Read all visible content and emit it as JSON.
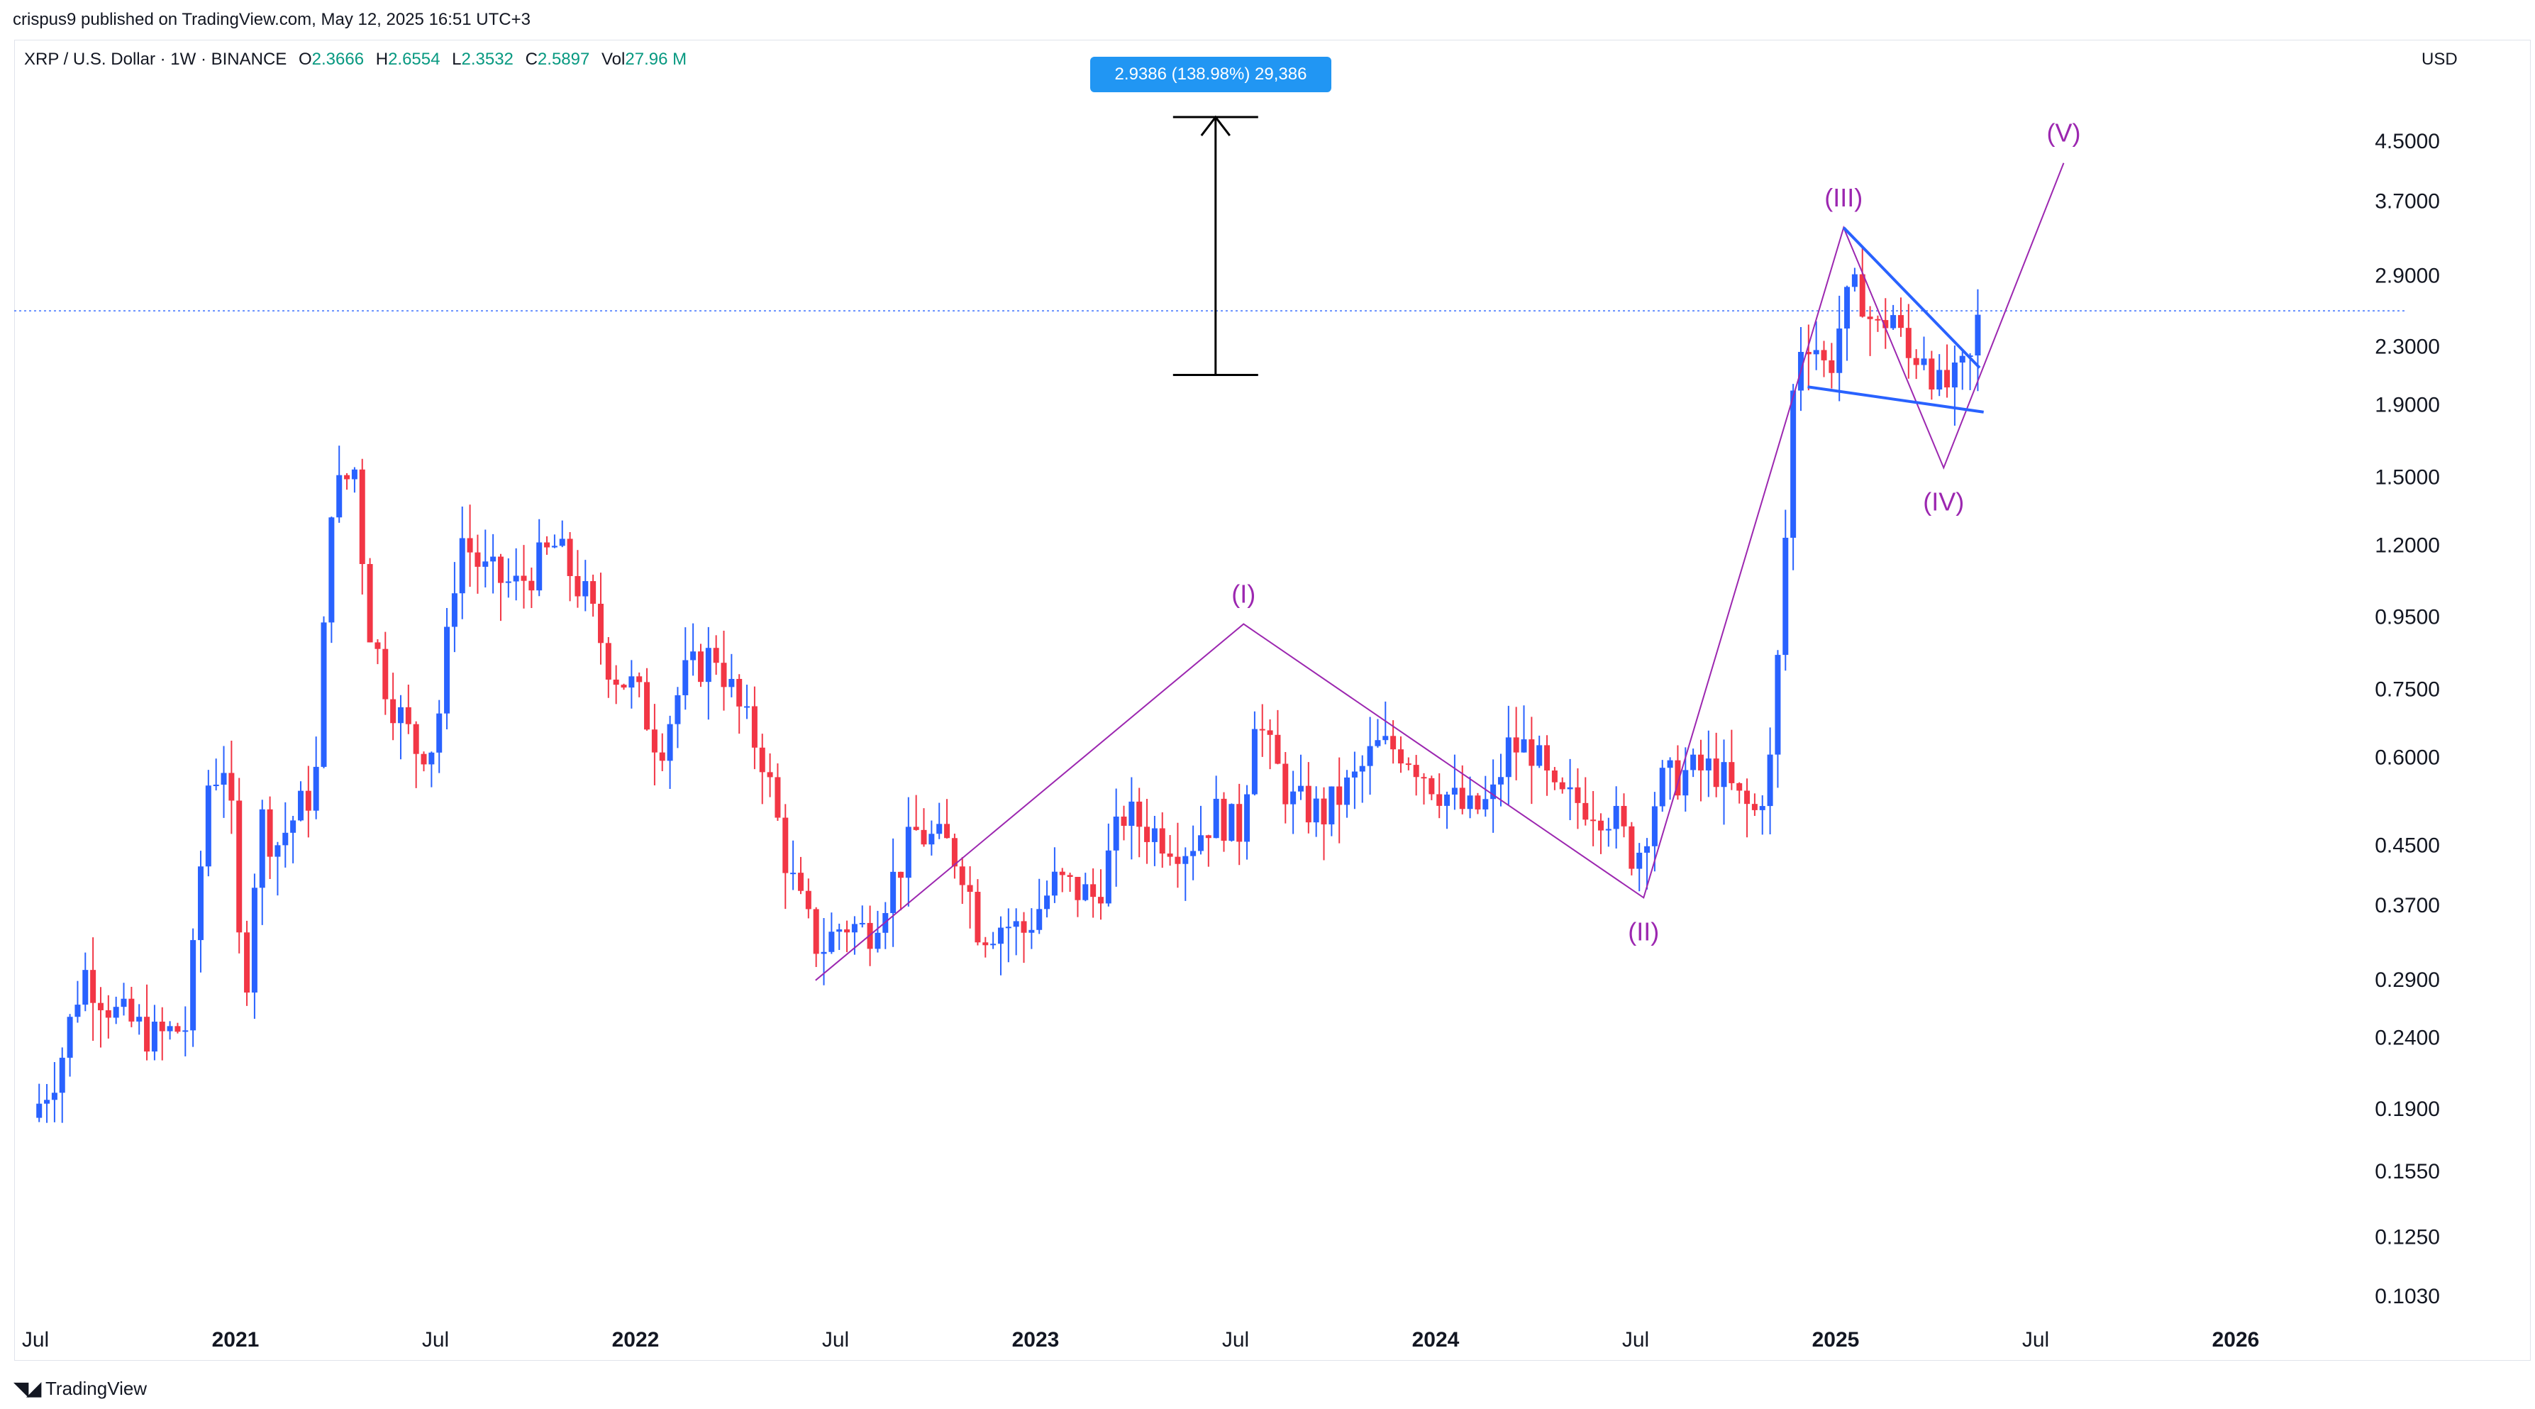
{
  "header": {
    "published_line": "crispus9 published on TradingView.com, May 12, 2025 16:51 UTC+3"
  },
  "legend": {
    "symbol": "XRP / U.S. Dollar · 1W · BINANCE",
    "open_label": "O",
    "open": "2.3666",
    "high_label": "H",
    "high": "2.6554",
    "low_label": "L",
    "low": "2.3532",
    "close_label": "C",
    "close": "2.5897",
    "vol_label": "Vol",
    "vol": "27.96 M"
  },
  "measure_label": "2.9386 (138.98%) 29,386",
  "currency": "USD",
  "footer": {
    "logo_text": "TradingView"
  },
  "colors": {
    "up": "#2962ff",
    "down": "#f23645",
    "wave": "#9c27b0",
    "triangle": "#2962ff",
    "price_line": "#2962ff",
    "measure_box": "#2196f3"
  },
  "chart_data": {
    "type": "candlestick",
    "y_scale": "log",
    "current_price": 2.5897,
    "y_ticks": [
      "4.5000",
      "3.7000",
      "2.9000",
      "2.3000",
      "1.9000",
      "1.5000",
      "1.2000",
      "0.9500",
      "0.7500",
      "0.6000",
      "0.4500",
      "0.3700",
      "0.2900",
      "0.2400",
      "0.1900",
      "0.1550",
      "0.1250",
      "0.1030"
    ],
    "x_ticks": [
      {
        "label": "Jul",
        "t": 2020.5,
        "bold": false
      },
      {
        "label": "2021",
        "t": 2021.0,
        "bold": true
      },
      {
        "label": "Jul",
        "t": 2021.5,
        "bold": false
      },
      {
        "label": "2022",
        "t": 2022.0,
        "bold": true
      },
      {
        "label": "Jul",
        "t": 2022.5,
        "bold": false
      },
      {
        "label": "2023",
        "t": 2023.0,
        "bold": true
      },
      {
        "label": "Jul",
        "t": 2023.5,
        "bold": false
      },
      {
        "label": "2024",
        "t": 2024.0,
        "bold": true
      },
      {
        "label": "Jul",
        "t": 2024.5,
        "bold": false
      },
      {
        "label": "2025",
        "t": 2025.0,
        "bold": true
      },
      {
        "label": "Jul",
        "t": 2025.5,
        "bold": false
      },
      {
        "label": "2026",
        "t": 2026.0,
        "bold": true
      }
    ],
    "price_anchors": [
      [
        2020.49,
        0.185
      ],
      [
        2020.56,
        0.22
      ],
      [
        2020.62,
        0.3
      ],
      [
        2020.7,
        0.26
      ],
      [
        2020.8,
        0.24
      ],
      [
        2020.88,
        0.25
      ],
      [
        2020.93,
        0.55
      ],
      [
        2020.98,
        0.6
      ],
      [
        2021.0,
        0.4
      ],
      [
        2021.02,
        0.26
      ],
      [
        2021.06,
        0.5
      ],
      [
        2021.1,
        0.45
      ],
      [
        2021.2,
        0.55
      ],
      [
        2021.24,
        1.4
      ],
      [
        2021.3,
        1.55
      ],
      [
        2021.33,
        0.95
      ],
      [
        2021.38,
        0.75
      ],
      [
        2021.45,
        0.62
      ],
      [
        2021.5,
        0.63
      ],
      [
        2021.56,
        1.25
      ],
      [
        2021.62,
        1.1
      ],
      [
        2021.7,
        1.05
      ],
      [
        2021.8,
        1.2
      ],
      [
        2021.88,
        1.0
      ],
      [
        2021.94,
        0.8
      ],
      [
        2022.0,
        0.75
      ],
      [
        2022.06,
        0.62
      ],
      [
        2022.12,
        0.78
      ],
      [
        2022.2,
        0.85
      ],
      [
        2022.26,
        0.7
      ],
      [
        2022.32,
        0.6
      ],
      [
        2022.38,
        0.42
      ],
      [
        2022.42,
        0.36
      ],
      [
        2022.46,
        0.32
      ],
      [
        2022.52,
        0.35
      ],
      [
        2022.58,
        0.34
      ],
      [
        2022.7,
        0.47
      ],
      [
        2022.78,
        0.45
      ],
      [
        2022.82,
        0.42
      ],
      [
        2022.86,
        0.34
      ],
      [
        2022.92,
        0.35
      ],
      [
        2022.97,
        0.34
      ],
      [
        2023.05,
        0.4
      ],
      [
        2023.15,
        0.38
      ],
      [
        2023.22,
        0.5
      ],
      [
        2023.3,
        0.47
      ],
      [
        2023.38,
        0.45
      ],
      [
        2023.45,
        0.5
      ],
      [
        2023.52,
        0.47
      ],
      [
        2023.54,
        0.72
      ],
      [
        2023.58,
        0.62
      ],
      [
        2023.64,
        0.52
      ],
      [
        2023.72,
        0.5
      ],
      [
        2023.8,
        0.56
      ],
      [
        2023.85,
        0.62
      ],
      [
        2023.92,
        0.62
      ],
      [
        2024.0,
        0.55
      ],
      [
        2024.08,
        0.5
      ],
      [
        2024.14,
        0.52
      ],
      [
        2024.18,
        0.62
      ],
      [
        2024.24,
        0.62
      ],
      [
        2024.3,
        0.52
      ],
      [
        2024.38,
        0.52
      ],
      [
        2024.44,
        0.5
      ],
      [
        2024.5,
        0.43
      ],
      [
        2024.56,
        0.55
      ],
      [
        2024.62,
        0.57
      ],
      [
        2024.7,
        0.58
      ],
      [
        2024.76,
        0.52
      ],
      [
        2024.8,
        0.5
      ],
      [
        2024.84,
        0.6
      ],
      [
        2024.87,
        1.1
      ],
      [
        2024.9,
        2.3
      ],
      [
        2024.94,
        2.4
      ],
      [
        2024.98,
        2.1
      ],
      [
        2025.02,
        2.6
      ],
      [
        2025.06,
        2.8
      ],
      [
        2025.1,
        2.4
      ],
      [
        2025.14,
        2.6
      ],
      [
        2025.18,
        2.2
      ],
      [
        2025.22,
        2.3
      ],
      [
        2025.26,
        2.0
      ],
      [
        2025.3,
        2.05
      ],
      [
        2025.34,
        2.2
      ],
      [
        2025.36,
        2.59
      ]
    ],
    "elliott_wave": [
      {
        "label": "",
        "t": 2022.45,
        "price": 0.29
      },
      {
        "label": "(I)",
        "t": 2023.52,
        "price": 0.93
      },
      {
        "label": "(II)",
        "t": 2024.52,
        "price": 0.38
      },
      {
        "label": "(III)",
        "t": 2025.02,
        "price": 3.4
      },
      {
        "label": "(IV)",
        "t": 2025.27,
        "price": 1.55
      },
      {
        "label": "(V)",
        "t": 2025.57,
        "price": 4.2
      }
    ],
    "triangle": {
      "upper": [
        [
          2025.02,
          3.4
        ],
        [
          2025.36,
          2.15
        ]
      ],
      "lower": [
        [
          2024.93,
          2.02
        ],
        [
          2025.37,
          1.86
        ]
      ]
    },
    "measure": {
      "t": 2023.45,
      "low": 2.1,
      "high": 4.88
    }
  }
}
